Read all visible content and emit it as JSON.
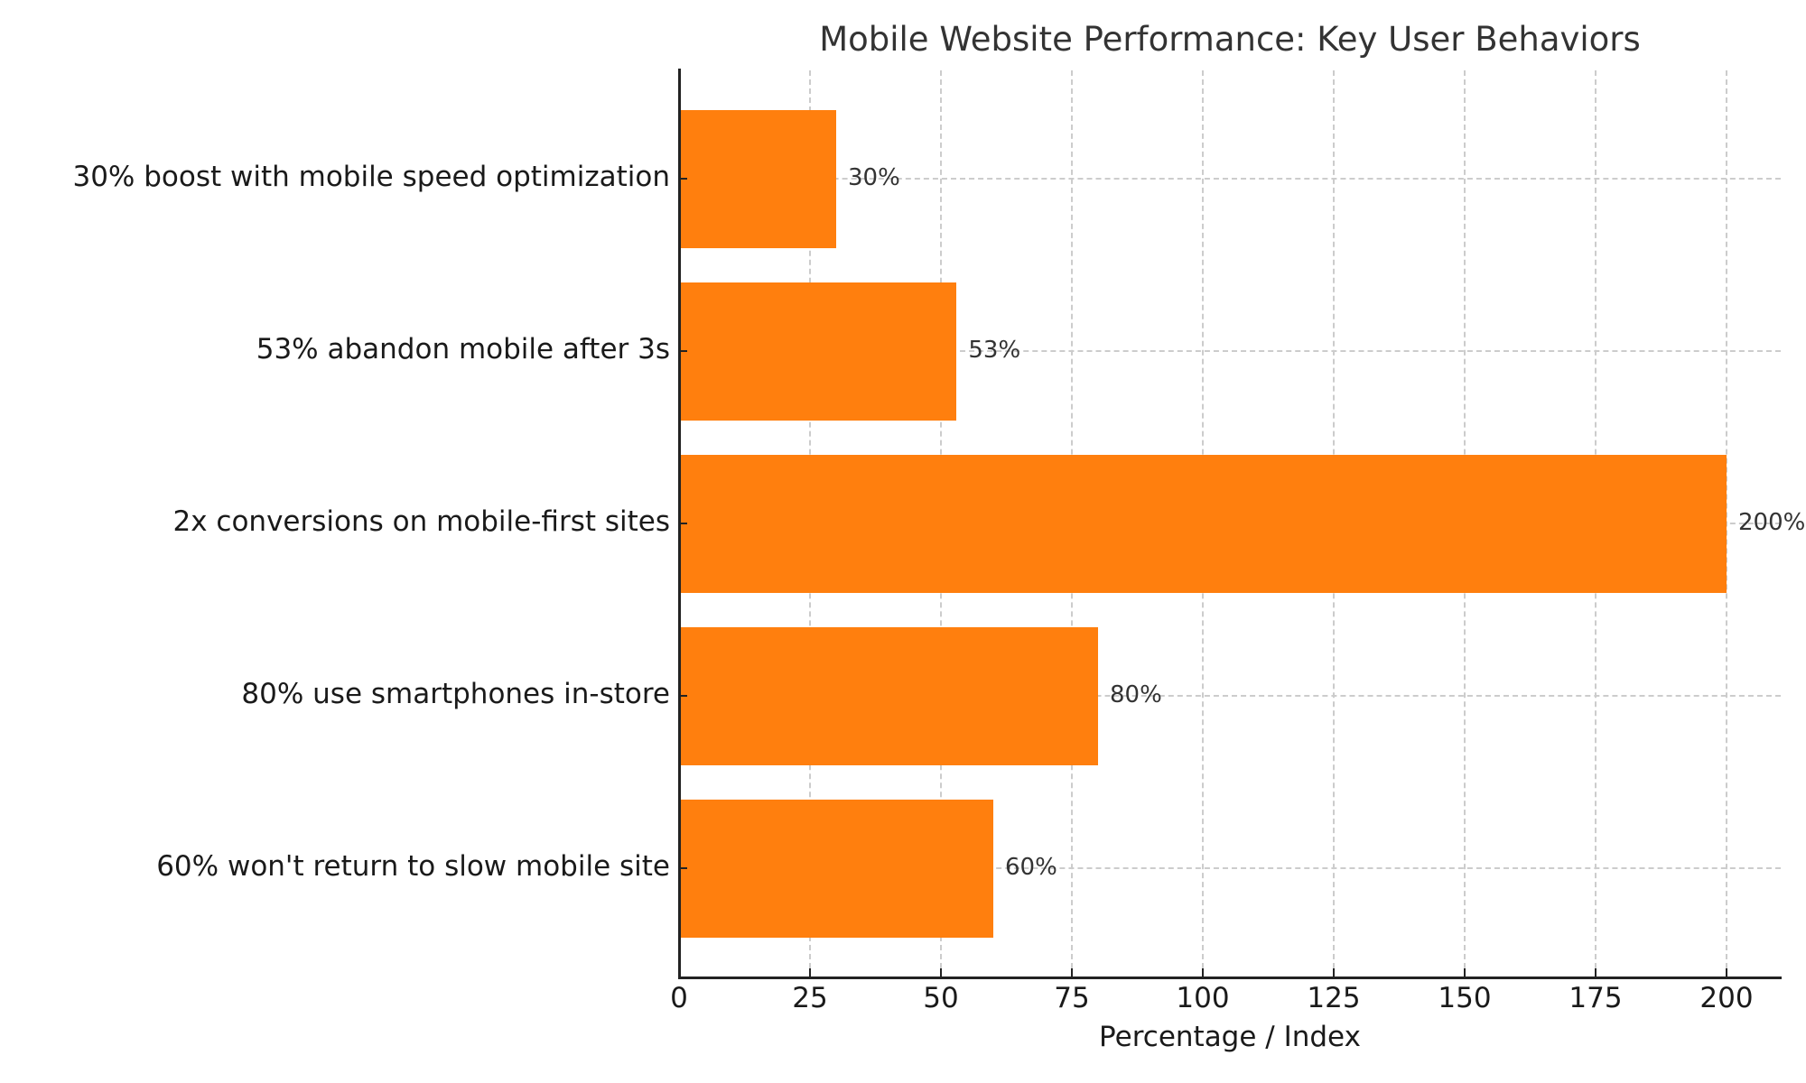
{
  "chart": {
    "title": "Mobile Website Performance: Key User Behaviors",
    "xlabel": "Percentage / Index",
    "bar_color": "#ff7f0e",
    "grid_color": "#cccccc",
    "text_color": "#333333"
  },
  "chart_data": {
    "type": "bar",
    "orientation": "horizontal",
    "title": "Mobile Website Performance: Key User Behaviors",
    "xlabel": "Percentage / Index",
    "ylabel": "",
    "categories": [
      "30% boost with mobile speed optimization",
      "53% abandon mobile after 3s",
      "2x conversions on mobile-first sites",
      "80% use smartphones in-store",
      "60% won't return to slow mobile site"
    ],
    "values": [
      30,
      53,
      200,
      80,
      60
    ],
    "value_labels": [
      "30%",
      "53%",
      "200%",
      "80%",
      "60%"
    ],
    "xlim": [
      0,
      210
    ],
    "xticks": [
      0,
      25,
      50,
      75,
      100,
      125,
      150,
      175,
      200
    ],
    "xtick_labels": [
      "0",
      "25",
      "50",
      "75",
      "100",
      "125",
      "150",
      "175",
      "200"
    ],
    "grid": true,
    "grid_style": "dashed",
    "legend": null,
    "colors": [
      "#ff7f0e"
    ]
  }
}
